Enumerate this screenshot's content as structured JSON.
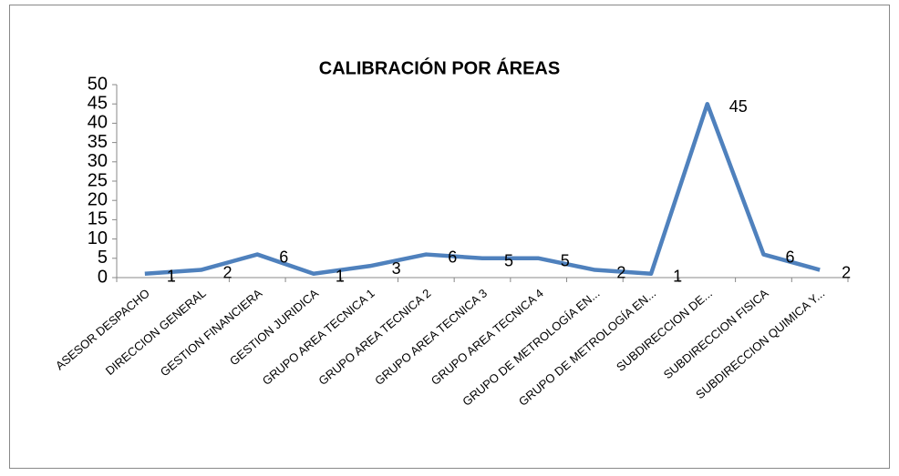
{
  "chart_data": {
    "type": "line",
    "title": "CALIBRACIÓN POR ÁREAS",
    "categories": [
      "ASESOR DESPACHO",
      "DIRECCION GENERAL",
      "GESTION FINANCIERA",
      "GESTION JURIDICA",
      "GRUPO AREA TECNICA 1",
      "GRUPO AREA TECNICA 2",
      "GRUPO AREA TECNICA 3",
      "GRUPO AREA TECNICA 4",
      "GRUPO DE METROLOGÍA EN...",
      "GRUPO DE METROLOGÍA EN...",
      "SUBDIRECCION DE...",
      "SUBDIRECCION FISICA",
      "SUBDIRECCION QUIMICA Y..."
    ],
    "values": [
      1,
      2,
      6,
      1,
      3,
      6,
      5,
      5,
      2,
      1,
      45,
      6,
      2
    ],
    "color": "#4f81bd",
    "ylim": [
      0,
      50
    ],
    "yticks": [
      0,
      5,
      10,
      15,
      20,
      25,
      30,
      35,
      40,
      45,
      50
    ]
  }
}
